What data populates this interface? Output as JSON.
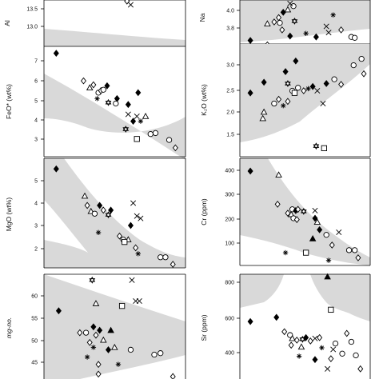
{
  "figure": {
    "panels": [
      {
        "id": "al2o3",
        "ylabel": "Al",
        "yticks": [
          "13.5",
          "13.0"
        ]
      },
      {
        "id": "na2o",
        "ylabel": "Na",
        "yticks": [
          "4.0",
          "3.8"
        ]
      },
      {
        "id": "feo",
        "ylabel": "FeO* (wt%)",
        "yticks": [
          "7",
          "6",
          "5",
          "4",
          "3"
        ]
      },
      {
        "id": "k2o",
        "ylabel": "K₂O (wt%)",
        "yticks": [
          "3.0",
          "2.5",
          "2.0",
          "1.5"
        ]
      },
      {
        "id": "mgo",
        "ylabel": "MgO (wt%)",
        "yticks": [
          "5",
          "4",
          "3",
          "2"
        ]
      },
      {
        "id": "cr",
        "ylabel": "Cr (ppm)",
        "yticks": [
          "400",
          "300",
          "200",
          "100"
        ]
      },
      {
        "id": "mgno",
        "ylabel": "mg-no.",
        "yticks": [
          "60",
          "55",
          "50",
          "45"
        ]
      },
      {
        "id": "sr",
        "ylabel": "Sr (ppm)",
        "yticks": [
          "800",
          "600",
          "400"
        ]
      }
    ]
  },
  "chart_data": [
    {
      "type": "scatter",
      "panel": "al2o3",
      "ylabel": "Al",
      "ylim": [
        12.85,
        13.72
      ],
      "yticks": [
        13.0,
        13.5
      ],
      "band": "gray field",
      "points": [
        {
          "m": "diamond_open",
          "x": 0.63,
          "y": 13.7
        },
        {
          "m": "cross",
          "x": 0.66,
          "y": 13.63
        }
      ]
    },
    {
      "type": "scatter",
      "panel": "na2o",
      "ylabel": "Na",
      "ylim": [
        3.7,
        4.2
      ],
      "yticks": [
        3.8,
        4.0
      ],
      "band": "gray field",
      "points": [
        {
          "m": "diamond_filled",
          "x": 0.05,
          "y": 3.74
        },
        {
          "m": "triangle_open",
          "x": 0.2,
          "y": 3.93
        },
        {
          "m": "diamond_open",
          "x": 0.26,
          "y": 3.95
        },
        {
          "m": "diamond_open",
          "x": 0.3,
          "y": 4.0
        },
        {
          "m": "circle_open",
          "x": 0.31,
          "y": 3.94
        },
        {
          "m": "diamond_filled",
          "x": 0.34,
          "y": 4.06
        },
        {
          "m": "triangle_open",
          "x": 0.38,
          "y": 4.09
        },
        {
          "m": "diamond_open",
          "x": 0.33,
          "y": 3.86
        },
        {
          "m": "circle_open",
          "x": 0.43,
          "y": 4.13
        },
        {
          "m": "star",
          "x": 0.44,
          "y": 3.96
        },
        {
          "m": "diamond_filled",
          "x": 0.4,
          "y": 3.79
        },
        {
          "m": "asterisk",
          "x": 0.54,
          "y": 3.82
        },
        {
          "m": "diamond_filled",
          "x": 0.63,
          "y": 3.78
        },
        {
          "m": "asterisk",
          "x": 0.78,
          "y": 4.03
        },
        {
          "m": "cross",
          "x": 0.74,
          "y": 3.83
        },
        {
          "m": "cross",
          "x": 0.72,
          "y": 3.9
        },
        {
          "m": "diamond_open",
          "x": 0.85,
          "y": 3.86
        },
        {
          "m": "circle_open",
          "x": 0.94,
          "y": 3.78
        },
        {
          "m": "circle_open",
          "x": 0.97,
          "y": 3.77
        },
        {
          "m": "diamond_open",
          "x": 0.2,
          "y": 3.69
        },
        {
          "m": "cross",
          "x": 0.4,
          "y": 4.16
        }
      ]
    },
    {
      "type": "scatter",
      "panel": "feo",
      "ylabel": "FeO* (wt%)",
      "ylim": [
        2.3,
        7.9
      ],
      "yticks": [
        3,
        4,
        5,
        6,
        7
      ],
      "band": "gray field",
      "points": [
        {
          "m": "diamond_filled",
          "x": 0.06,
          "y": 7.55
        },
        {
          "m": "diamond_open",
          "x": 0.28,
          "y": 6.15
        },
        {
          "m": "triangle_open",
          "x": 0.33,
          "y": 5.8
        },
        {
          "m": "diamond_open",
          "x": 0.36,
          "y": 5.95
        },
        {
          "m": "circle_open",
          "x": 0.4,
          "y": 5.55
        },
        {
          "m": "asterisk",
          "x": 0.39,
          "y": 5.25
        },
        {
          "m": "diamond_filled",
          "x": 0.47,
          "y": 5.9
        },
        {
          "m": "diamond_open",
          "x": 0.42,
          "y": 5.65
        },
        {
          "m": "circle_open",
          "x": 0.44,
          "y": 5.7
        },
        {
          "m": "diamond_filled",
          "x": 0.55,
          "y": 5.25
        },
        {
          "m": "star",
          "x": 0.48,
          "y": 5.05
        },
        {
          "m": "circle_open",
          "x": 0.54,
          "y": 5.0
        },
        {
          "m": "diamond_filled",
          "x": 0.64,
          "y": 4.95
        },
        {
          "m": "cross",
          "x": 0.71,
          "y": 4.35
        },
        {
          "m": "cross",
          "x": 0.64,
          "y": 4.45
        },
        {
          "m": "diamond_filled",
          "x": 0.68,
          "y": 4.1
        },
        {
          "m": "diamond_filled",
          "x": 0.72,
          "y": 5.55
        },
        {
          "m": "star",
          "x": 0.62,
          "y": 3.7
        },
        {
          "m": "asterisk",
          "x": 0.74,
          "y": 4.1
        },
        {
          "m": "triangle_open",
          "x": 0.78,
          "y": 4.35
        },
        {
          "m": "circle_open",
          "x": 0.82,
          "y": 3.45
        },
        {
          "m": "circle_open",
          "x": 0.86,
          "y": 3.5
        },
        {
          "m": "square_open",
          "x": 0.71,
          "y": 3.2
        },
        {
          "m": "circle_open",
          "x": 0.97,
          "y": 3.15
        },
        {
          "m": "diamond_open",
          "x": 1.02,
          "y": 2.75
        }
      ]
    },
    {
      "type": "scatter",
      "panel": "k2o",
      "ylabel": "K₂O (wt%)",
      "ylim": [
        0.9,
        3.55
      ],
      "yticks": [
        1.5,
        2.0,
        2.5,
        3.0
      ],
      "band": "gray field",
      "points": [
        {
          "m": "diamond_filled",
          "x": 0.05,
          "y": 2.4
        },
        {
          "m": "diamond_filled",
          "x": 0.17,
          "y": 2.65
        },
        {
          "m": "diamond_filled",
          "x": 0.36,
          "y": 2.9
        },
        {
          "m": "diamond_filled",
          "x": 0.45,
          "y": 3.15
        },
        {
          "m": "triangle_open",
          "x": 0.17,
          "y": 1.95
        },
        {
          "m": "triangle_open",
          "x": 0.16,
          "y": 1.8
        },
        {
          "m": "circle_open",
          "x": 0.26,
          "y": 2.15
        },
        {
          "m": "diamond_open",
          "x": 0.3,
          "y": 2.25
        },
        {
          "m": "asterisk",
          "x": 0.34,
          "y": 2.1
        },
        {
          "m": "diamond_open",
          "x": 0.38,
          "y": 2.2
        },
        {
          "m": "circle_open",
          "x": 0.42,
          "y": 2.45
        },
        {
          "m": "star",
          "x": 0.38,
          "y": 2.62
        },
        {
          "m": "circle_open",
          "x": 0.47,
          "y": 2.52
        },
        {
          "m": "diamond_open",
          "x": 0.52,
          "y": 2.45
        },
        {
          "m": "square_open",
          "x": 0.44,
          "y": 2.4
        },
        {
          "m": "asterisk",
          "x": 0.56,
          "y": 2.5
        },
        {
          "m": "diamond_filled",
          "x": 0.6,
          "y": 2.55
        },
        {
          "m": "cross",
          "x": 0.64,
          "y": 2.45
        },
        {
          "m": "cross",
          "x": 0.69,
          "y": 2.15
        },
        {
          "m": "circle_open",
          "x": 0.79,
          "y": 2.72
        },
        {
          "m": "diamond_open",
          "x": 0.85,
          "y": 2.6
        },
        {
          "m": "circle_open",
          "x": 0.96,
          "y": 3.05
        },
        {
          "m": "circle_open",
          "x": 1.03,
          "y": 3.2
        },
        {
          "m": "diamond_open",
          "x": 1.05,
          "y": 2.85
        },
        {
          "m": "square_open",
          "x": 0.7,
          "y": 1.1
        },
        {
          "m": "star",
          "x": 0.63,
          "y": 1.15
        },
        {
          "m": "diamond_filled",
          "x": 0.72,
          "y": 2.62
        }
      ]
    },
    {
      "type": "scatter",
      "panel": "mgo",
      "ylabel": "MgO (wt%)",
      "ylim": [
        1.1,
        5.75
      ],
      "yticks": [
        2,
        3,
        4,
        5
      ],
      "band": "gray field",
      "points": [
        {
          "m": "diamond_filled",
          "x": 0.06,
          "y": 5.3
        },
        {
          "m": "triangle_open",
          "x": 0.29,
          "y": 4.15
        },
        {
          "m": "diamond_open",
          "x": 0.31,
          "y": 3.75
        },
        {
          "m": "triangle_open",
          "x": 0.34,
          "y": 3.5
        },
        {
          "m": "circle_open",
          "x": 0.37,
          "y": 3.4
        },
        {
          "m": "diamond_filled",
          "x": 0.41,
          "y": 3.75
        },
        {
          "m": "diamond_open",
          "x": 0.44,
          "y": 3.55
        },
        {
          "m": "star",
          "x": 0.48,
          "y": 3.35
        },
        {
          "m": "asterisk",
          "x": 0.4,
          "y": 2.6
        },
        {
          "m": "diamond_filled",
          "x": 0.5,
          "y": 3.55
        },
        {
          "m": "cross",
          "x": 0.68,
          "y": 3.85
        },
        {
          "m": "cross",
          "x": 0.71,
          "y": 3.3
        },
        {
          "m": "cross",
          "x": 0.74,
          "y": 3.2
        },
        {
          "m": "diamond_open",
          "x": 0.57,
          "y": 2.45
        },
        {
          "m": "circle_open",
          "x": 0.6,
          "y": 2.3
        },
        {
          "m": "triangle_open",
          "x": 0.64,
          "y": 2.3
        },
        {
          "m": "square_open",
          "x": 0.61,
          "y": 2.2
        },
        {
          "m": "diamond_filled",
          "x": 0.66,
          "y": 2.9
        },
        {
          "m": "diamond_open",
          "x": 0.7,
          "y": 1.95
        },
        {
          "m": "asterisk",
          "x": 0.72,
          "y": 1.7
        },
        {
          "m": "circle_open",
          "x": 0.9,
          "y": 1.55
        },
        {
          "m": "circle_open",
          "x": 0.94,
          "y": 1.55
        },
        {
          "m": "diamond_open",
          "x": 1.0,
          "y": 1.25
        }
      ]
    },
    {
      "type": "scatter",
      "panel": "cr",
      "ylabel": "Cr (ppm)",
      "ylim": [
        20,
        440
      ],
      "yticks": [
        100,
        200,
        300,
        400
      ],
      "band": "gray field",
      "points": [
        {
          "m": "diamond_filled",
          "x": 0.05,
          "y": 390
        },
        {
          "m": "triangle_open",
          "x": 0.3,
          "y": 375
        },
        {
          "m": "diamond_open",
          "x": 0.29,
          "y": 260
        },
        {
          "m": "diamond_open",
          "x": 0.38,
          "y": 225
        },
        {
          "m": "circle_open",
          "x": 0.42,
          "y": 240
        },
        {
          "m": "triangle_open",
          "x": 0.41,
          "y": 220
        },
        {
          "m": "diamond_filled",
          "x": 0.45,
          "y": 235
        },
        {
          "m": "diamond_open",
          "x": 0.47,
          "y": 240
        },
        {
          "m": "star",
          "x": 0.52,
          "y": 232
        },
        {
          "m": "circle_open",
          "x": 0.43,
          "y": 205
        },
        {
          "m": "diamond_open",
          "x": 0.46,
          "y": 200
        },
        {
          "m": "cross",
          "x": 0.62,
          "y": 235
        },
        {
          "m": "diamond_filled",
          "x": 0.62,
          "y": 205
        },
        {
          "m": "triangle_open",
          "x": 0.64,
          "y": 190
        },
        {
          "m": "diamond_filled",
          "x": 0.66,
          "y": 160
        },
        {
          "m": "triangle_filled",
          "x": 0.6,
          "y": 125
        },
        {
          "m": "asterisk",
          "x": 0.36,
          "y": 70
        },
        {
          "m": "square_open",
          "x": 0.54,
          "y": 70
        },
        {
          "m": "circle_open",
          "x": 0.72,
          "y": 140
        },
        {
          "m": "diamond_open",
          "x": 0.77,
          "y": 100
        },
        {
          "m": "asterisk",
          "x": 0.74,
          "y": 40
        },
        {
          "m": "circle_open",
          "x": 0.92,
          "y": 80
        },
        {
          "m": "circle_open",
          "x": 0.97,
          "y": 80
        },
        {
          "m": "diamond_open",
          "x": 1.0,
          "y": 50
        },
        {
          "m": "cross",
          "x": 0.83,
          "y": 150
        }
      ]
    },
    {
      "type": "scatter",
      "panel": "mgno",
      "ylabel": "mg-no.",
      "ylim": [
        41.5,
        63.0
      ],
      "yticks": [
        45,
        50,
        55,
        60
      ],
      "band": "gray field",
      "points": [
        {
          "m": "star",
          "x": 0.35,
          "y": 61.8
        },
        {
          "m": "cross",
          "x": 0.67,
          "y": 61.8
        },
        {
          "m": "triangle_open",
          "x": 0.38,
          "y": 57.0
        },
        {
          "m": "diamond_filled",
          "x": 0.08,
          "y": 55.5
        },
        {
          "m": "square_open",
          "x": 0.59,
          "y": 56.5
        },
        {
          "m": "cross",
          "x": 0.7,
          "y": 57.5
        },
        {
          "m": "cross",
          "x": 0.73,
          "y": 57.5
        },
        {
          "m": "diamond_open",
          "x": 0.25,
          "y": 51.0
        },
        {
          "m": "circle_open",
          "x": 0.3,
          "y": 51.0
        },
        {
          "m": "diamond_filled",
          "x": 0.36,
          "y": 52.2
        },
        {
          "m": "diamond_filled",
          "x": 0.41,
          "y": 51.5
        },
        {
          "m": "diamond_open",
          "x": 0.38,
          "y": 50.5
        },
        {
          "m": "triangle_open",
          "x": 0.44,
          "y": 49.5
        },
        {
          "m": "triangle_filled",
          "x": 0.5,
          "y": 51.5
        },
        {
          "m": "diamond_open",
          "x": 0.33,
          "y": 49.0
        },
        {
          "m": "asterisk",
          "x": 0.36,
          "y": 48.0
        },
        {
          "m": "diamond_filled",
          "x": 0.48,
          "y": 47.5
        },
        {
          "m": "triangle_open",
          "x": 0.53,
          "y": 48.0
        },
        {
          "m": "asterisk",
          "x": 0.31,
          "y": 46.0
        },
        {
          "m": "diamond_open",
          "x": 0.4,
          "y": 44.5
        },
        {
          "m": "asterisk",
          "x": 0.56,
          "y": 44.5
        },
        {
          "m": "diamond_open",
          "x": 0.4,
          "y": 42.5
        },
        {
          "m": "circle_open",
          "x": 0.66,
          "y": 47.5
        },
        {
          "m": "circle_open",
          "x": 0.85,
          "y": 46.5
        },
        {
          "m": "circle_open",
          "x": 0.9,
          "y": 46.8
        },
        {
          "m": "diamond_open",
          "x": 1.0,
          "y": 42.0
        }
      ]
    },
    {
      "type": "scatter",
      "panel": "sr",
      "ylabel": "Sr (ppm)",
      "ylim": [
        280,
        900
      ],
      "yticks": [
        400,
        600,
        800
      ],
      "band": "gray field",
      "points": [
        {
          "m": "triangle_filled",
          "x": 0.73,
          "y": 885
        },
        {
          "m": "diamond_filled",
          "x": 0.28,
          "y": 645
        },
        {
          "m": "diamond_filled",
          "x": 0.05,
          "y": 620
        },
        {
          "m": "square_open",
          "x": 0.76,
          "y": 690
        },
        {
          "m": "diamond_open",
          "x": 0.35,
          "y": 560
        },
        {
          "m": "circle_open",
          "x": 0.4,
          "y": 540
        },
        {
          "m": "triangle_open",
          "x": 0.42,
          "y": 520
        },
        {
          "m": "diamond_open",
          "x": 0.46,
          "y": 510
        },
        {
          "m": "star",
          "x": 0.51,
          "y": 515
        },
        {
          "m": "diamond_filled",
          "x": 0.54,
          "y": 525
        },
        {
          "m": "diamond_open",
          "x": 0.58,
          "y": 505
        },
        {
          "m": "cross",
          "x": 0.62,
          "y": 520
        },
        {
          "m": "diamond_open",
          "x": 0.66,
          "y": 525
        },
        {
          "m": "diamond_open",
          "x": 0.9,
          "y": 550
        },
        {
          "m": "circle_open",
          "x": 0.8,
          "y": 490
        },
        {
          "m": "asterisk",
          "x": 0.68,
          "y": 465
        },
        {
          "m": "circle_open",
          "x": 0.94,
          "y": 500
        },
        {
          "m": "triangle_open",
          "x": 0.5,
          "y": 470
        },
        {
          "m": "cross",
          "x": 0.78,
          "y": 455
        },
        {
          "m": "circle_open",
          "x": 0.86,
          "y": 430
        },
        {
          "m": "asterisk",
          "x": 0.48,
          "y": 415
        },
        {
          "m": "diamond_open",
          "x": 0.41,
          "y": 480
        },
        {
          "m": "circle_open",
          "x": 0.98,
          "y": 420
        },
        {
          "m": "diamond_open",
          "x": 0.76,
          "y": 400
        },
        {
          "m": "diamond_filled",
          "x": 0.62,
          "y": 395
        },
        {
          "m": "cross",
          "x": 0.73,
          "y": 340
        },
        {
          "m": "diamond_open",
          "x": 1.02,
          "y": 340
        }
      ]
    }
  ]
}
